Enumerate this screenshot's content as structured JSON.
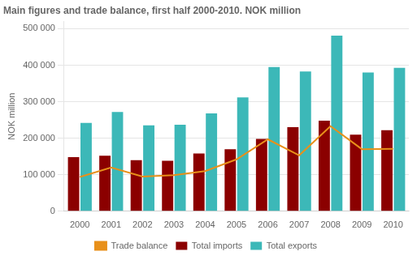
{
  "chart_data": {
    "type": "bar",
    "title": "Main figures and trade balance, first half 2000-2010. NOK million",
    "ylabel": "NOK million",
    "categories": [
      "2000",
      "2001",
      "2002",
      "2003",
      "2004",
      "2005",
      "2006",
      "2007",
      "2008",
      "2009",
      "2010"
    ],
    "series": [
      {
        "name": "Total imports",
        "color": "#8B0000",
        "values": [
          148000,
          152000,
          140000,
          138000,
          158000,
          170000,
          198000,
          230000,
          248000,
          210000,
          222000
        ]
      },
      {
        "name": "Total exports",
        "color": "#3CB8B8",
        "values": [
          242000,
          272000,
          235000,
          237000,
          268000,
          312000,
          395000,
          383000,
          481000,
          380000,
          393000
        ]
      },
      {
        "name": "Trade balance",
        "type": "line",
        "color": "#E8901A",
        "values": [
          94000,
          120000,
          95000,
          99000,
          110000,
          142000,
          197000,
          153000,
          233000,
          170000,
          171000
        ]
      }
    ],
    "ylim": [
      0,
      520000
    ],
    "yticks": [
      0,
      {
        "value": 100000,
        "label": "100 000"
      },
      {
        "value": 200000,
        "label": "200 000"
      },
      {
        "value": 300000,
        "label": "300 000"
      },
      {
        "value": 400000,
        "label": "400 000"
      },
      {
        "value": 500000,
        "label": "500 000"
      }
    ],
    "grid": true,
    "legend": "bottom"
  }
}
